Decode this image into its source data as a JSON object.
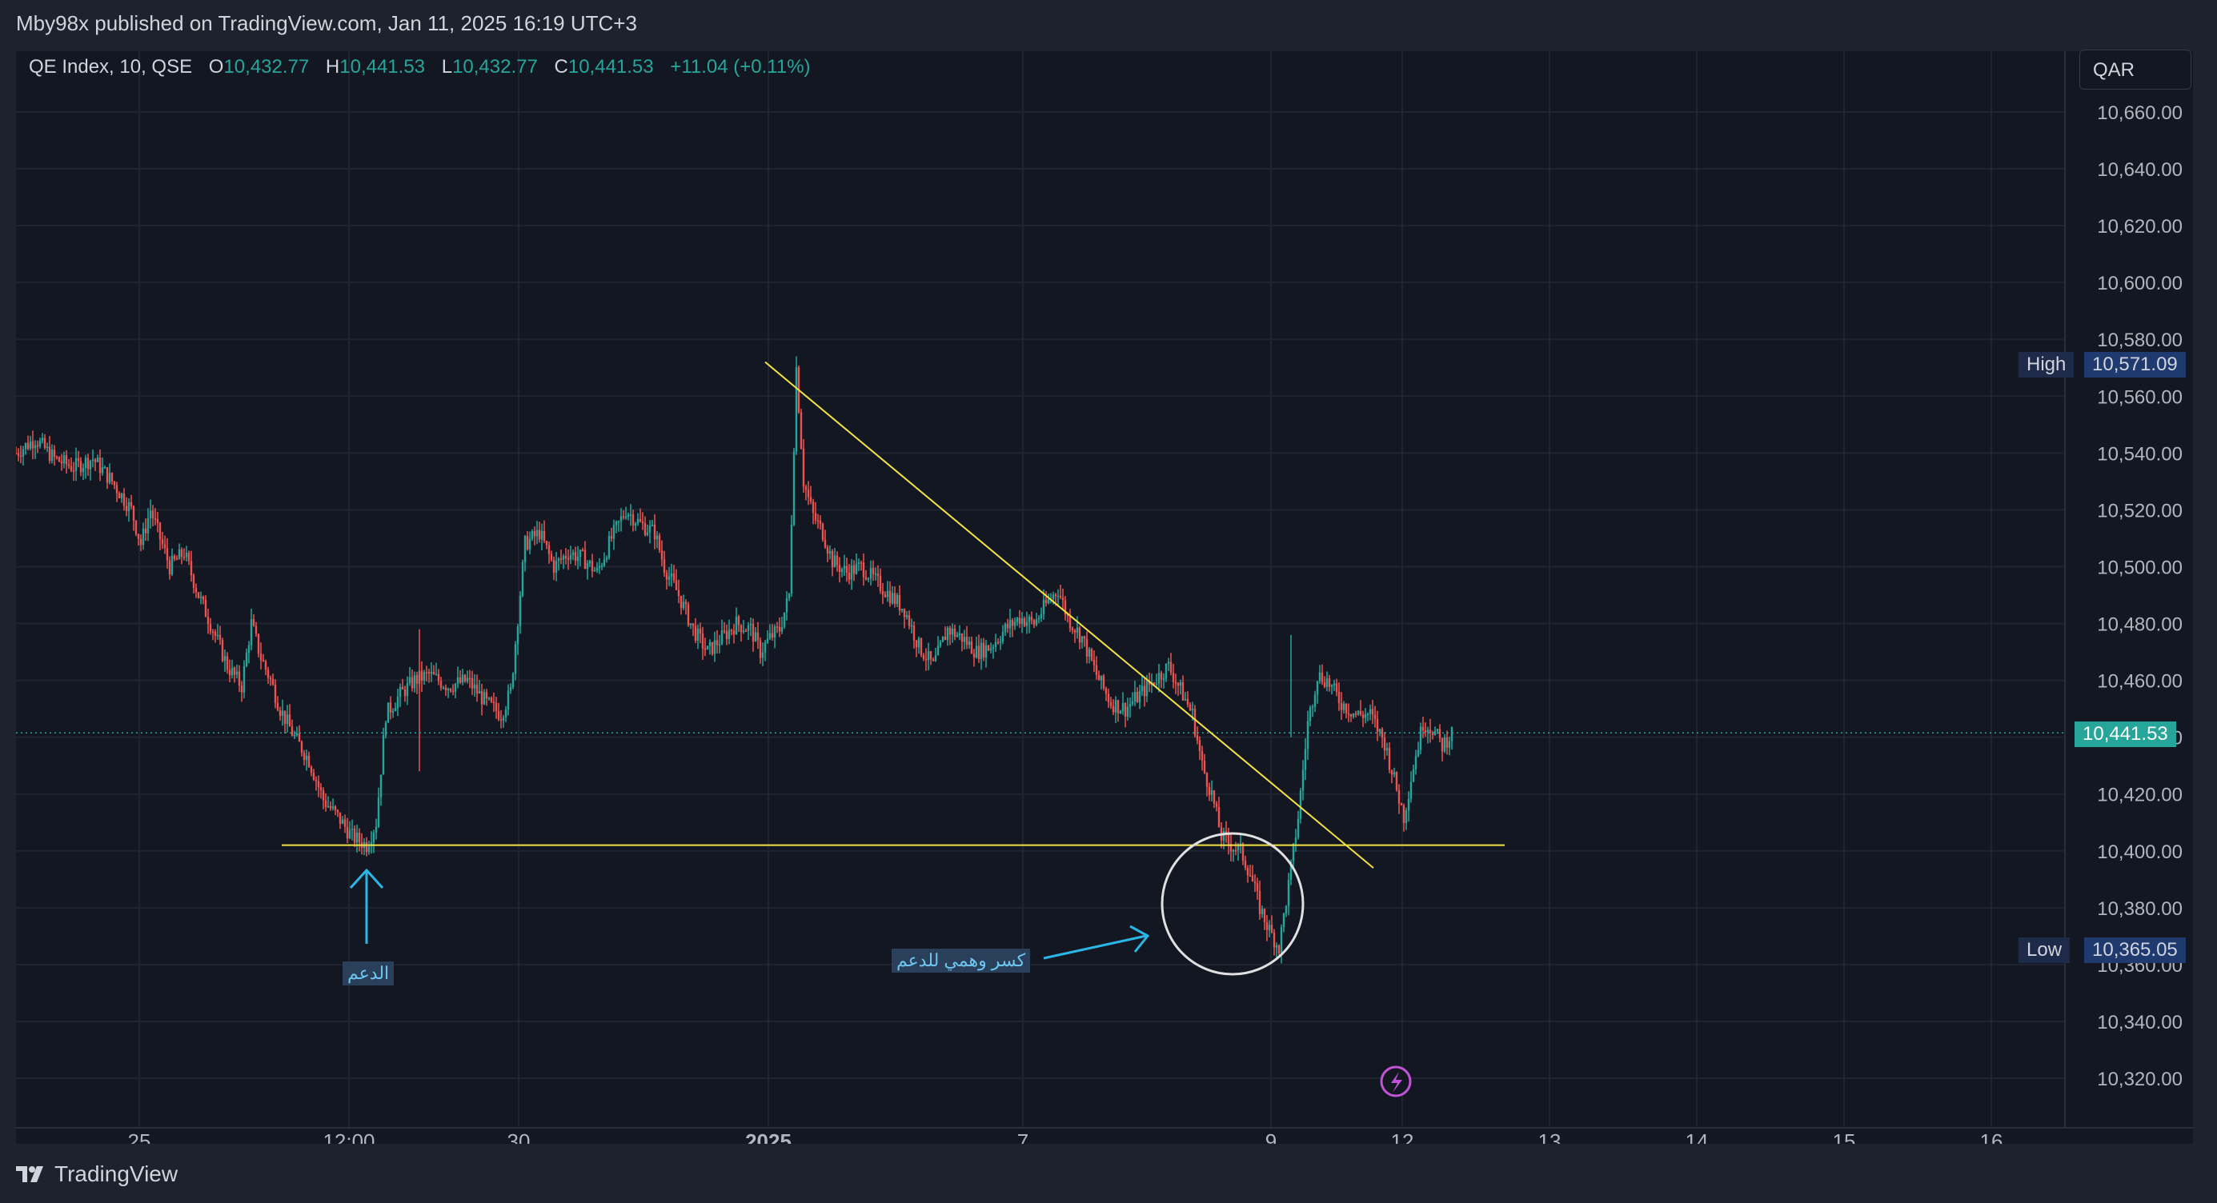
{
  "header": {
    "publish_line": "Mby98x published on TradingView.com, Jan 11, 2025 16:19 UTC+3"
  },
  "legend": {
    "symbol": "QE Index, 10, QSE",
    "o_label": "O",
    "o_value": "10,432.77",
    "h_label": "H",
    "h_value": "10,441.53",
    "l_label": "L",
    "l_value": "10,432.77",
    "c_label": "C",
    "c_value": "10,441.53",
    "change": "+11.04 (+0.11%)"
  },
  "currency": "QAR",
  "high_marker": {
    "label": "High",
    "value": "10,571.09"
  },
  "low_marker": {
    "label": "Low",
    "value": "10,365.05"
  },
  "last_price": "10,441.53",
  "annotations": {
    "support_label": "الدعم",
    "false_break_label": "كسر وهمي للدعم"
  },
  "footer": {
    "brand": "TradingView"
  },
  "colors": {
    "up": "#26a69a",
    "down": "#ef5350",
    "trendline": "#f5e342",
    "arrow": "#2bb6e8",
    "background": "#131722"
  },
  "chart_data": {
    "type": "candlestick",
    "symbol": "QE Index",
    "interval": "10",
    "y_ticks": [
      10320,
      10340,
      10360,
      10380,
      10400,
      10420,
      10440,
      10460,
      10480,
      10500,
      10520,
      10540,
      10560,
      10580,
      10600,
      10620,
      10640,
      10660
    ],
    "y_tick_labels": [
      "10,320.00",
      "10,340.00",
      "10,360.00",
      "10,380.00",
      "10,400.00",
      "10,420.00",
      "10,440.00",
      "10,460.00",
      "10,480.00",
      "10,500.00",
      "10,520.00",
      "10,540.00",
      "10,560.00",
      "10,580.00",
      "10,600.00",
      "10,620.00",
      "10,640.00",
      "10,660.00"
    ],
    "x_tick_labels": [
      "25",
      "12:00",
      "30",
      "2025",
      "7",
      "9",
      "12",
      "13",
      "14",
      "15",
      "16"
    ],
    "ylim": [
      10310,
      10670
    ],
    "high": 10571.09,
    "low": 10365.05,
    "last": 10441.53,
    "support_level": 10402,
    "price_path": [
      [
        0,
        10540
      ],
      [
        8,
        10545
      ],
      [
        16,
        10538
      ],
      [
        24,
        10535
      ],
      [
        32,
        10538
      ],
      [
        40,
        10530
      ],
      [
        48,
        10520
      ],
      [
        52,
        10508
      ],
      [
        56,
        10520
      ],
      [
        60,
        10510
      ],
      [
        64,
        10500
      ],
      [
        70,
        10505
      ],
      [
        76,
        10490
      ],
      [
        82,
        10478
      ],
      [
        88,
        10465
      ],
      [
        94,
        10458
      ],
      [
        98,
        10480
      ],
      [
        102,
        10468
      ],
      [
        106,
        10460
      ],
      [
        110,
        10450
      ],
      [
        116,
        10440
      ],
      [
        122,
        10432
      ],
      [
        128,
        10418
      ],
      [
        134,
        10412
      ],
      [
        140,
        10405
      ],
      [
        146,
        10402
      ],
      [
        150,
        10410
      ],
      [
        154,
        10448
      ],
      [
        160,
        10455
      ],
      [
        166,
        10460
      ],
      [
        172,
        10462
      ],
      [
        180,
        10458
      ],
      [
        188,
        10460
      ],
      [
        196,
        10452
      ],
      [
        202,
        10448
      ],
      [
        206,
        10456
      ],
      [
        212,
        10508
      ],
      [
        218,
        10512
      ],
      [
        224,
        10500
      ],
      [
        230,
        10505
      ],
      [
        236,
        10503
      ],
      [
        242,
        10498
      ],
      [
        248,
        10510
      ],
      [
        254,
        10520
      ],
      [
        260,
        10515
      ],
      [
        266,
        10512
      ],
      [
        270,
        10500
      ],
      [
        276,
        10490
      ],
      [
        282,
        10478
      ],
      [
        288,
        10470
      ],
      [
        294,
        10475
      ],
      [
        300,
        10480
      ],
      [
        306,
        10478
      ],
      [
        310,
        10470
      ],
      [
        314,
        10475
      ],
      [
        318,
        10478
      ],
      [
        322,
        10490
      ],
      [
        325,
        10570
      ],
      [
        328,
        10530
      ],
      [
        332,
        10518
      ],
      [
        336,
        10512
      ],
      [
        340,
        10502
      ],
      [
        346,
        10498
      ],
      [
        352,
        10500
      ],
      [
        358,
        10495
      ],
      [
        364,
        10490
      ],
      [
        370,
        10485
      ],
      [
        376,
        10472
      ],
      [
        382,
        10465
      ],
      [
        388,
        10478
      ],
      [
        394,
        10475
      ],
      [
        400,
        10470
      ],
      [
        406,
        10472
      ],
      [
        412,
        10478
      ],
      [
        418,
        10482
      ],
      [
        424,
        10480
      ],
      [
        430,
        10488
      ],
      [
        434,
        10492
      ],
      [
        438,
        10482
      ],
      [
        444,
        10475
      ],
      [
        450,
        10462
      ],
      [
        456,
        10452
      ],
      [
        462,
        10450
      ],
      [
        468,
        10455
      ],
      [
        474,
        10460
      ],
      [
        480,
        10465
      ],
      [
        486,
        10455
      ],
      [
        490,
        10448
      ],
      [
        494,
        10430
      ],
      [
        498,
        10420
      ],
      [
        502,
        10405
      ],
      [
        506,
        10402
      ],
      [
        510,
        10400
      ],
      [
        514,
        10392
      ],
      [
        518,
        10380
      ],
      [
        522,
        10372
      ],
      [
        526,
        10366
      ],
      [
        530,
        10388
      ],
      [
        534,
        10412
      ],
      [
        538,
        10445
      ],
      [
        542,
        10462
      ],
      [
        546,
        10460
      ],
      [
        552,
        10452
      ],
      [
        558,
        10448
      ],
      [
        564,
        10448
      ],
      [
        570,
        10438
      ],
      [
        574,
        10425
      ],
      [
        578,
        10412
      ],
      [
        582,
        10430
      ],
      [
        586,
        10445
      ],
      [
        590,
        10443
      ],
      [
        594,
        10437
      ],
      [
        598,
        10441.53
      ]
    ]
  }
}
